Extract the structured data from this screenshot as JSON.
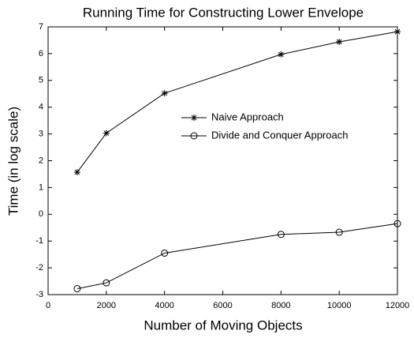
{
  "chart_data": {
    "type": "line",
    "title": "Running Time for Constructing Lower Envelope",
    "xlabel": "Number of Moving Objects",
    "ylabel": "Time (in log scale)",
    "x": [
      1000,
      2000,
      4000,
      8000,
      10000,
      12000
    ],
    "series": [
      {
        "name": "Naive Approach",
        "color": "#000000",
        "marker": "*",
        "values": [
          1.57,
          3.03,
          4.52,
          5.97,
          6.44,
          6.82
        ]
      },
      {
        "name": "Divide and Conquer Approach",
        "color": "#000000",
        "marker": "o",
        "values": [
          -2.78,
          -2.56,
          -1.45,
          -0.75,
          -0.67,
          -0.35
        ]
      }
    ],
    "xlim": [
      0,
      12000
    ],
    "xticks": [
      0,
      2000,
      4000,
      6000,
      8000,
      10000,
      12000
    ],
    "ylim": [
      -3,
      7
    ],
    "yticks": [
      -3,
      -2,
      -1,
      0,
      1,
      2,
      3,
      4,
      5,
      6,
      7
    ],
    "grid": false,
    "legend": "center right"
  }
}
